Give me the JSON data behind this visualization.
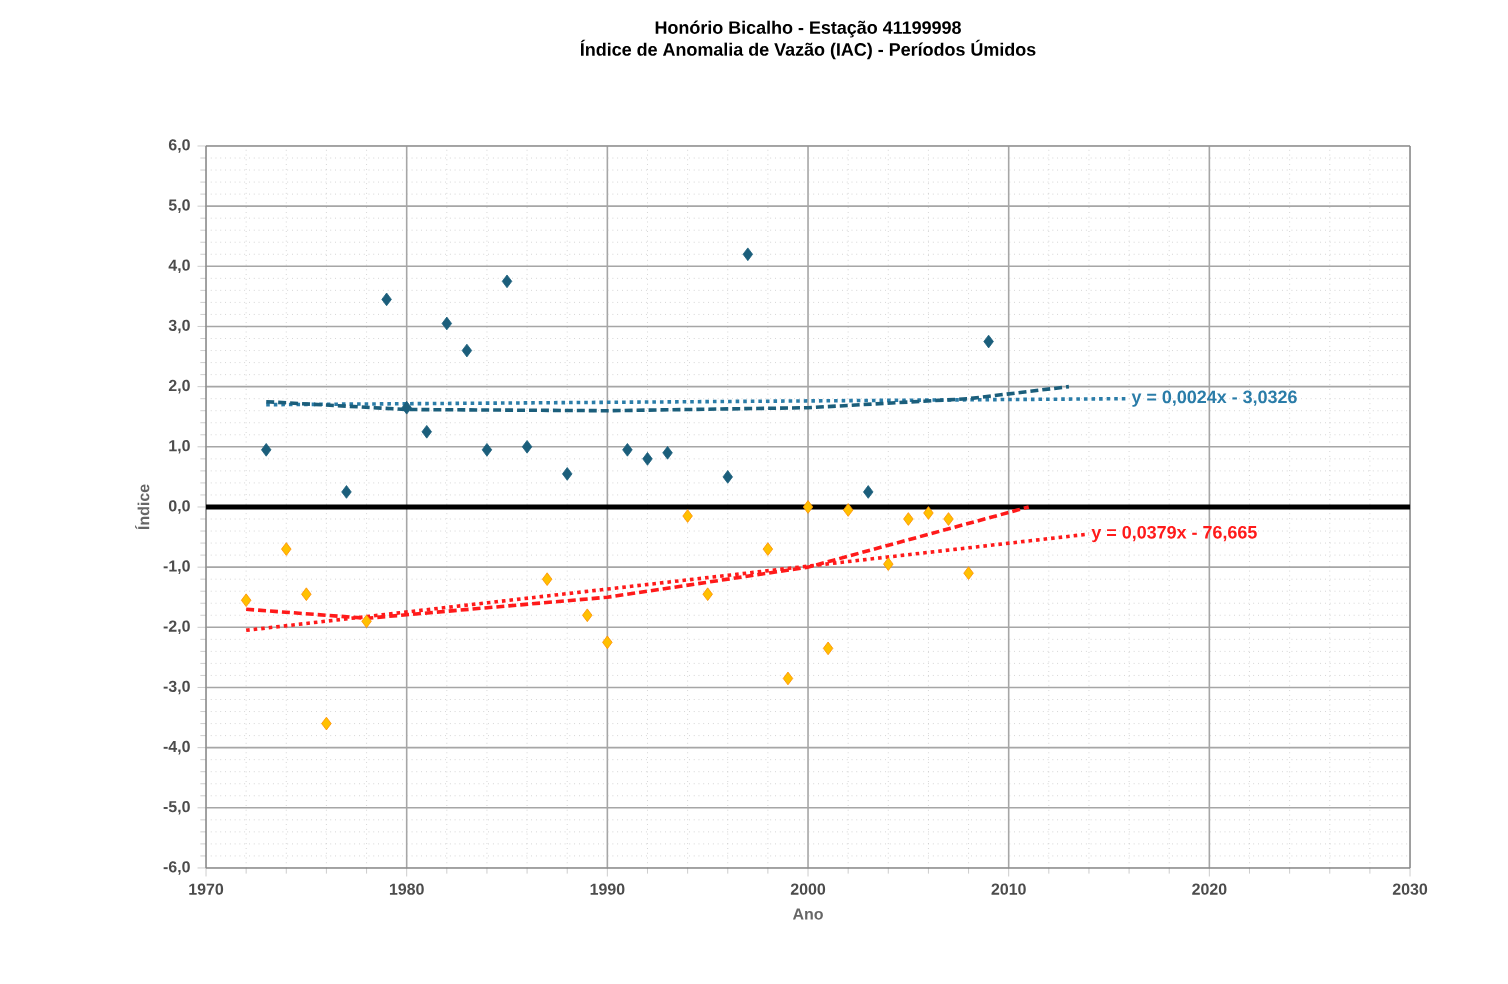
{
  "chart_data": {
    "type": "scatter",
    "title": "Honório Bicalho -  Estação 41199998",
    "subtitle": "Índice de Anomalia de Vazão (IAC) - Períodos Úmidos",
    "xlabel": "Ano",
    "ylabel": "Índice",
    "xlim": [
      1970,
      2030
    ],
    "xticks": [
      1970,
      1980,
      1990,
      2000,
      2010,
      2020,
      2030
    ],
    "ylim": [
      -6,
      6
    ],
    "yticks": [
      {
        "value": -6,
        "label": "-6,0"
      },
      {
        "value": -5,
        "label": "-5,0"
      },
      {
        "value": -4,
        "label": "-4,0"
      },
      {
        "value": -3,
        "label": "-3,0"
      },
      {
        "value": -2,
        "label": "-2,0"
      },
      {
        "value": -1,
        "label": "-1,0"
      },
      {
        "value": 0,
        "label": "0,0"
      },
      {
        "value": 1,
        "label": "1,0"
      },
      {
        "value": 2,
        "label": "2,0"
      },
      {
        "value": 3,
        "label": "3,0"
      },
      {
        "value": 4,
        "label": "4,0"
      },
      {
        "value": 5,
        "label": "5,0"
      },
      {
        "value": 6,
        "label": "6,0"
      }
    ],
    "grid": true,
    "marker": "diamond",
    "series": [
      {
        "color": "#1b5e7b",
        "x": [
          1973,
          1977,
          1979,
          1980,
          1981,
          1982,
          1983,
          1984,
          1985,
          1986,
          1988,
          1991,
          1992,
          1993,
          1996,
          1997,
          2003,
          2009
        ],
        "values": [
          0.95,
          0.25,
          3.45,
          1.65,
          1.25,
          3.05,
          2.6,
          0.95,
          3.75,
          1.0,
          0.55,
          0.95,
          0.8,
          0.9,
          0.5,
          4.2,
          0.25,
          2.75
        ]
      },
      {
        "color": "#ffc000",
        "x": [
          1972,
          1974,
          1975,
          1976,
          1978,
          1987,
          1989,
          1990,
          1994,
          1995,
          1998,
          1999,
          2000,
          2001,
          2002,
          2004,
          2005,
          2006,
          2007,
          2008
        ],
        "values": [
          -1.55,
          -0.7,
          -1.45,
          -3.6,
          -1.9,
          -1.2,
          -1.8,
          -2.25,
          -0.15,
          -1.45,
          -0.7,
          -2.85,
          0.0,
          -2.35,
          -0.05,
          -0.95,
          -0.2,
          -0.1,
          -0.2,
          -1.1
        ]
      },
      {
        "type": "line",
        "marker": "none",
        "line_style": "dotted",
        "color": "#2a7ca8",
        "x": [
          1973,
          2016
        ],
        "values": [
          1.7,
          1.8
        ]
      },
      {
        "type": "line",
        "marker": "none",
        "line_style": "dashed",
        "color": "#1b5e7b",
        "x": [
          1973,
          1980,
          1990,
          2000,
          2008,
          2013
        ],
        "values": [
          1.75,
          1.62,
          1.6,
          1.65,
          1.8,
          2.0
        ]
      },
      {
        "type": "line",
        "marker": "none",
        "line_style": "dotted",
        "color": "#ff1a1a",
        "x": [
          1972,
          2014
        ],
        "values": [
          -2.05,
          -0.45
        ]
      },
      {
        "type": "line",
        "marker": "none",
        "line_style": "dashed",
        "color": "#ff1a1a",
        "x": [
          1972,
          1978,
          1990,
          2000,
          2011
        ],
        "values": [
          -1.7,
          -1.85,
          -1.5,
          -1.0,
          0.0
        ]
      }
    ],
    "ref_lines": [
      {
        "axis": "y",
        "value": 0,
        "color": "#000000"
      }
    ],
    "annotations": [
      "y = 0,0024x - 3,0326",
      "y = 0,0379x - 76,665"
    ]
  }
}
